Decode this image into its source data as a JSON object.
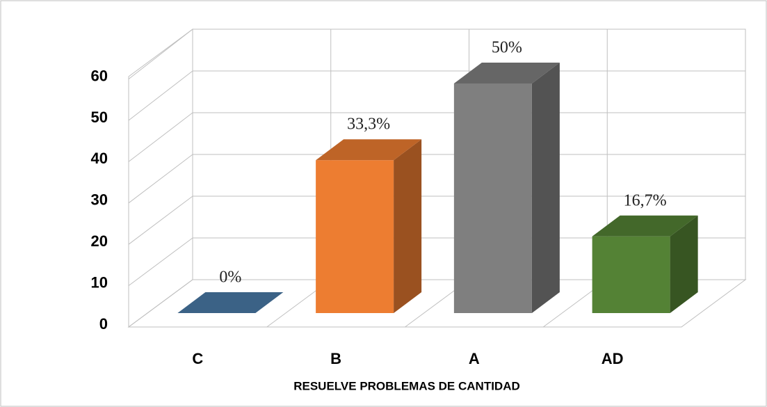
{
  "chart_data": {
    "type": "bar3d",
    "x_label": "RESUELVE PROBLEMAS DE CANTIDAD",
    "categories": [
      "C",
      "B",
      "A",
      "AD"
    ],
    "values": [
      0,
      33.3,
      50,
      16.7
    ],
    "value_labels": [
      "0%",
      "33,3%",
      "50%",
      "16,7%"
    ],
    "colors": [
      "#4a7aa8",
      "#ed7d31",
      "#7f7f7f",
      "#548235"
    ],
    "ylim": [
      0,
      60
    ],
    "yticks": [
      0,
      10,
      20,
      30,
      40,
      50,
      60
    ],
    "grid": true
  }
}
